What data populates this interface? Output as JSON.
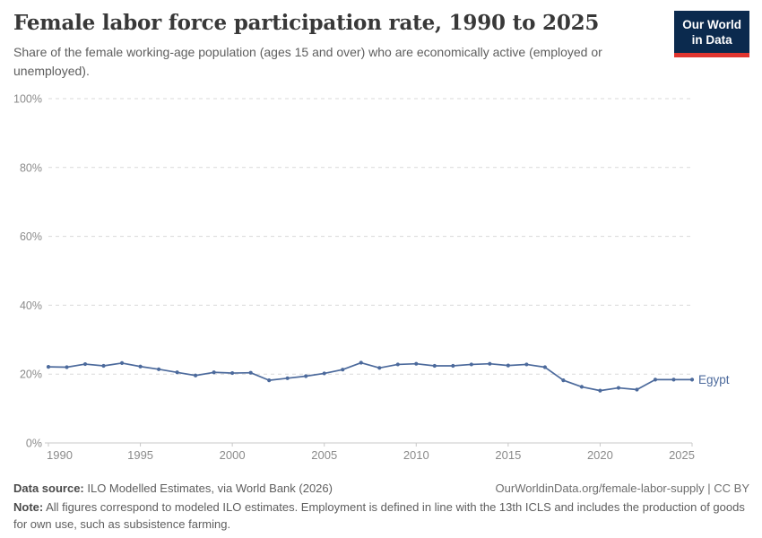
{
  "header": {
    "title": "Female labor force participation rate, 1990 to 2025",
    "subtitle": "Share of the female working-age population (ages 15 and over) who are economically active (employed or unemployed).",
    "logo": {
      "line1": "Our World",
      "line2": "in Data",
      "bg_color": "#0b2a4e",
      "accent_color": "#e0352f"
    }
  },
  "chart_data": {
    "type": "line",
    "title": "Female labor force participation rate, 1990 to 2025",
    "xlabel": "",
    "ylabel": "",
    "xlim": [
      1990,
      2025
    ],
    "ylim": [
      0,
      100
    ],
    "grid": "horizontal-dashed",
    "legend": "end-of-line-label",
    "yticks": [
      0,
      20,
      40,
      60,
      80,
      100
    ],
    "ytick_labels": [
      "0%",
      "20%",
      "40%",
      "60%",
      "80%",
      "100%"
    ],
    "xticks": [
      1990,
      1995,
      2000,
      2005,
      2010,
      2015,
      2020,
      2025
    ],
    "series": [
      {
        "name": "Egypt",
        "color": "#4c6a9c",
        "x": [
          1990,
          1991,
          1992,
          1993,
          1994,
          1995,
          1996,
          1997,
          1998,
          1999,
          2000,
          2001,
          2002,
          2003,
          2004,
          2005,
          2006,
          2007,
          2008,
          2009,
          2010,
          2011,
          2012,
          2013,
          2014,
          2015,
          2016,
          2017,
          2018,
          2019,
          2020,
          2021,
          2022,
          2023,
          2024,
          2025
        ],
        "values": [
          22.1,
          22.0,
          22.9,
          22.4,
          23.2,
          22.2,
          21.4,
          20.5,
          19.6,
          20.5,
          20.3,
          20.4,
          18.2,
          18.8,
          19.4,
          20.2,
          21.3,
          23.3,
          21.8,
          22.8,
          23.0,
          22.4,
          22.4,
          22.8,
          23.0,
          22.5,
          22.8,
          22.0,
          18.2,
          16.3,
          15.2,
          16.0,
          15.5,
          18.4,
          18.4,
          18.4
        ]
      }
    ],
    "colors": {
      "gridline": "#d9d9d9",
      "axis": "#c8c8c8",
      "tick_label": "#8b8b8b"
    }
  },
  "footer": {
    "datasource_label": "Data source:",
    "datasource_text": " ILO Modelled Estimates, via World Bank (2026)",
    "attribution": "OurWorldinData.org/female-labor-supply | CC BY",
    "note_label": "Note:",
    "note_text": " All figures correspond to modeled ILO estimates. Employment is defined in line with the 13th ICLS and includes the production of goods for own use, such as subsistence farming."
  }
}
